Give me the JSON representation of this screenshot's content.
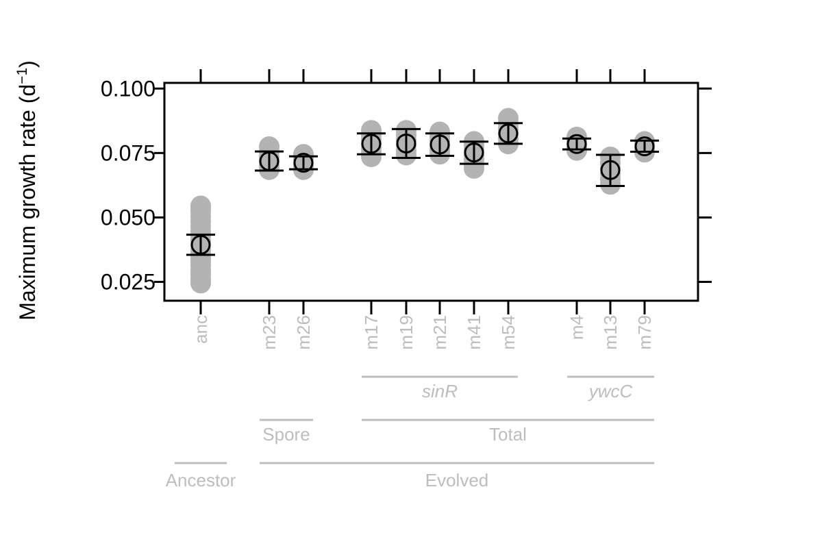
{
  "chart_data": {
    "type": "scatter",
    "ylabel": "Maximum growth rate (d",
    "ylabel_sup": "−1",
    "ylabel_close": ")",
    "ylim": [
      0.0177,
      0.1022
    ],
    "yticks": [
      {
        "value": 0.025,
        "label": "0.025"
      },
      {
        "value": 0.05,
        "label": "0.050"
      },
      {
        "value": 0.075,
        "label": "0.075"
      },
      {
        "value": 0.1,
        "label": "0.100"
      }
    ],
    "colors": {
      "raw_points": "#b3b3b3",
      "summary": "#000000",
      "labels": "#bdbdbd",
      "axis": "#000000"
    },
    "categories": [
      {
        "label": "anc",
        "mean": 0.0394,
        "lower": 0.0355,
        "upper": 0.0433,
        "points": [
          0.0545,
          0.0535,
          0.0525,
          0.0505,
          0.0485,
          0.0465,
          0.0445,
          0.043,
          0.041,
          0.0395,
          0.0375,
          0.036,
          0.0345,
          0.033,
          0.0315,
          0.0295,
          0.028,
          0.026,
          0.0245
        ]
      },
      {
        "label": "m23",
        "mean": 0.0718,
        "lower": 0.0682,
        "upper": 0.0756,
        "points": [
          0.0775,
          0.0755,
          0.0735,
          0.0718,
          0.07,
          0.0685
        ]
      },
      {
        "label": "m26",
        "mean": 0.0712,
        "lower": 0.0687,
        "upper": 0.0737,
        "points": [
          0.0745,
          0.0728,
          0.0712,
          0.0698,
          0.0685
        ]
      },
      {
        "label": "m17",
        "mean": 0.0786,
        "lower": 0.0745,
        "upper": 0.0826,
        "points": [
          0.0838,
          0.082,
          0.0802,
          0.0785,
          0.0768,
          0.075,
          0.0735
        ]
      },
      {
        "label": "m19",
        "mean": 0.0787,
        "lower": 0.0731,
        "upper": 0.0843,
        "points": [
          0.0838,
          0.082,
          0.08,
          0.078,
          0.076,
          0.0742
        ]
      },
      {
        "label": "m21",
        "mean": 0.0783,
        "lower": 0.0739,
        "upper": 0.0826,
        "points": [
          0.0832,
          0.0815,
          0.0798,
          0.078,
          0.0762,
          0.0745
        ]
      },
      {
        "label": "m41",
        "mean": 0.0752,
        "lower": 0.0708,
        "upper": 0.0794,
        "points": [
          0.0795,
          0.0778,
          0.076,
          0.0742,
          0.0725,
          0.0705,
          0.069
        ]
      },
      {
        "label": "m54",
        "mean": 0.0826,
        "lower": 0.0786,
        "upper": 0.0866,
        "points": [
          0.0885,
          0.0865,
          0.0845,
          0.0825,
          0.0805,
          0.0785
        ]
      },
      {
        "label": "m4",
        "mean": 0.0785,
        "lower": 0.0764,
        "upper": 0.0806,
        "points": [
          0.0812,
          0.0798,
          0.0785,
          0.0772,
          0.076
        ]
      },
      {
        "label": "m13",
        "mean": 0.0684,
        "lower": 0.0622,
        "upper": 0.0743,
        "points": [
          0.0735,
          0.0712,
          0.069,
          0.0668,
          0.0648,
          0.0628
        ]
      },
      {
        "label": "m79",
        "mean": 0.0776,
        "lower": 0.0755,
        "upper": 0.0798,
        "points": [
          0.0795,
          0.078,
          0.0766,
          0.0753
        ]
      }
    ],
    "groupings": [
      {
        "label": "sinR",
        "italic": true,
        "from": "m17",
        "to": "m54",
        "level": 1
      },
      {
        "label": "ywcC",
        "italic": true,
        "from": "m4",
        "to": "m79",
        "level": 1
      },
      {
        "label": "Spore",
        "italic": false,
        "from": "m23",
        "to": "m26",
        "level": 2
      },
      {
        "label": "Total",
        "italic": false,
        "from": "m17",
        "to": "m79",
        "level": 2
      },
      {
        "label": "Ancestor",
        "italic": false,
        "from": "anc",
        "to": "anc",
        "level": 3
      },
      {
        "label": "Evolved",
        "italic": false,
        "from": "m23",
        "to": "m79",
        "level": 3
      }
    ]
  }
}
